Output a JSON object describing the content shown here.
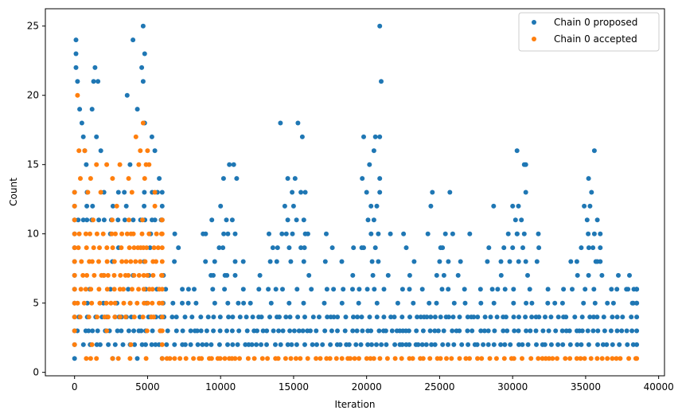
{
  "chart_data": {
    "type": "scatter",
    "title": "",
    "xlabel": "Iteration",
    "ylabel": "Count",
    "xlim": [
      -2000,
      40400
    ],
    "ylim": [
      -0.25,
      26.25
    ],
    "xticks": [
      0,
      5000,
      10000,
      15000,
      20000,
      25000,
      30000,
      35000,
      40000
    ],
    "yticks": [
      0,
      5,
      10,
      15,
      20,
      25
    ],
    "grid": false,
    "legend_position": "top-right",
    "series": [
      {
        "name": "Chain 0 proposed",
        "color": "#1f77b4",
        "bands": [
          {
            "y": 1,
            "x": [
              0,
              6000
            ],
            "density": "sparse"
          },
          {
            "y": 2,
            "x": [
              0,
              38500
            ],
            "density": "dense"
          },
          {
            "y": 3,
            "x": [
              0,
              38500
            ],
            "density": "dense"
          },
          {
            "y": 4,
            "x": [
              0,
              38500
            ],
            "density": "dense"
          },
          {
            "y": 5,
            "x": [
              0,
              38500
            ],
            "density": "medium"
          },
          {
            "y": 6,
            "x": [
              0,
              38500
            ],
            "density": "medium"
          },
          {
            "y": 7,
            "x": [
              0,
              38000
            ],
            "density": "sparse"
          },
          {
            "y": 8,
            "x": [
              0,
              36000
            ],
            "density": "sparse"
          },
          {
            "y": 9,
            "x": [
              0,
              36000
            ],
            "density": "sparse"
          },
          {
            "y": 10,
            "x": [
              0,
              36000
            ],
            "density": "sparse"
          },
          {
            "y": 11,
            "x": [
              0,
              6000
            ],
            "density": "dense"
          },
          {
            "y": 12,
            "x": [
              0,
              6000
            ],
            "density": "medium"
          },
          {
            "y": 13,
            "x": [
              0,
              6000
            ],
            "density": "medium"
          }
        ],
        "points": [
          [
            100,
            24
          ],
          [
            100,
            23
          ],
          [
            100,
            22
          ],
          [
            200,
            21
          ],
          [
            350,
            19
          ],
          [
            500,
            18
          ],
          [
            600,
            17
          ],
          [
            700,
            16
          ],
          [
            800,
            15
          ],
          [
            1400,
            22
          ],
          [
            1300,
            21
          ],
          [
            1600,
            21
          ],
          [
            1200,
            19
          ],
          [
            1500,
            17
          ],
          [
            1800,
            16
          ],
          [
            4000,
            24
          ],
          [
            4700,
            25
          ],
          [
            4800,
            23
          ],
          [
            4600,
            22
          ],
          [
            4700,
            21
          ],
          [
            3600,
            20
          ],
          [
            4300,
            19
          ],
          [
            4800,
            18
          ],
          [
            5300,
            17
          ],
          [
            5500,
            16
          ],
          [
            3800,
            15
          ],
          [
            5800,
            14
          ],
          [
            8800,
            10
          ],
          [
            9400,
            11
          ],
          [
            10000,
            12
          ],
          [
            10200,
            14
          ],
          [
            10600,
            15
          ],
          [
            10900,
            15
          ],
          [
            11100,
            14
          ],
          [
            10400,
            11
          ],
          [
            10800,
            11
          ],
          [
            10500,
            10
          ],
          [
            11000,
            10
          ],
          [
            9900,
            9
          ],
          [
            11000,
            8
          ],
          [
            9600,
            8
          ],
          [
            10300,
            7
          ],
          [
            9500,
            7
          ],
          [
            11000,
            7
          ],
          [
            14100,
            18
          ],
          [
            15300,
            18
          ],
          [
            15600,
            17
          ],
          [
            14600,
            14
          ],
          [
            15100,
            14
          ],
          [
            14900,
            13
          ],
          [
            15500,
            13
          ],
          [
            15800,
            13
          ],
          [
            14400,
            12
          ],
          [
            15000,
            12
          ],
          [
            15200,
            11
          ],
          [
            14600,
            11
          ],
          [
            15700,
            11
          ],
          [
            14500,
            10
          ],
          [
            14200,
            10
          ],
          [
            15800,
            10
          ],
          [
            13900,
            9
          ],
          [
            14700,
            9
          ],
          [
            15500,
            9
          ],
          [
            13400,
            8
          ],
          [
            15700,
            8
          ],
          [
            19800,
            17
          ],
          [
            20600,
            17
          ],
          [
            20900,
            17
          ],
          [
            20500,
            16
          ],
          [
            20200,
            15
          ],
          [
            19700,
            14
          ],
          [
            20900,
            14
          ],
          [
            20900,
            25
          ],
          [
            21000,
            21
          ],
          [
            20000,
            13
          ],
          [
            20300,
            12
          ],
          [
            20700,
            12
          ],
          [
            20900,
            13
          ],
          [
            20100,
            11
          ],
          [
            20500,
            11
          ],
          [
            20800,
            10
          ],
          [
            19100,
            9
          ],
          [
            19800,
            9
          ],
          [
            20600,
            9
          ],
          [
            18300,
            8
          ],
          [
            20800,
            8
          ],
          [
            24500,
            13
          ],
          [
            25700,
            13
          ],
          [
            24400,
            12
          ],
          [
            24200,
            10
          ],
          [
            25900,
            10
          ],
          [
            25200,
            9
          ],
          [
            25000,
            8
          ],
          [
            25600,
            8
          ],
          [
            24800,
            7
          ],
          [
            25300,
            7
          ],
          [
            30300,
            16
          ],
          [
            30800,
            15
          ],
          [
            30900,
            15
          ],
          [
            28700,
            12
          ],
          [
            30000,
            12
          ],
          [
            30400,
            12
          ],
          [
            30900,
            13
          ],
          [
            30200,
            11
          ],
          [
            30600,
            11
          ],
          [
            29700,
            10
          ],
          [
            30300,
            10
          ],
          [
            30800,
            10
          ],
          [
            29400,
            9
          ],
          [
            30000,
            9
          ],
          [
            30700,
            9
          ],
          [
            29200,
            8
          ],
          [
            29800,
            8
          ],
          [
            30900,
            8
          ],
          [
            35600,
            16
          ],
          [
            35200,
            14
          ],
          [
            35400,
            13
          ],
          [
            34900,
            12
          ],
          [
            35300,
            12
          ],
          [
            35100,
            11
          ],
          [
            35800,
            11
          ],
          [
            35600,
            10
          ],
          [
            34700,
            9
          ],
          [
            35500,
            9
          ],
          [
            34400,
            8
          ],
          [
            35800,
            8
          ],
          [
            35200,
            7
          ],
          [
            37900,
            6
          ],
          [
            38300,
            6
          ],
          [
            38500,
            6
          ],
          [
            38200,
            5
          ],
          [
            38500,
            5
          ]
        ]
      },
      {
        "name": "Chain 0 accepted",
        "color": "#ff7f0e",
        "bands": [
          {
            "y": 1,
            "x": [
              6000,
              38500
            ],
            "density": "dense"
          },
          {
            "y": 2,
            "x": [
              0,
              6000
            ],
            "density": "sparse"
          },
          {
            "y": 3,
            "x": [
              0,
              6000
            ],
            "density": "sparse"
          },
          {
            "y": 4,
            "x": [
              0,
              6000
            ],
            "density": "dense"
          },
          {
            "y": 5,
            "x": [
              0,
              6000
            ],
            "density": "dense"
          },
          {
            "y": 6,
            "x": [
              0,
              6000
            ],
            "density": "dense"
          },
          {
            "y": 7,
            "x": [
              0,
              6000
            ],
            "density": "dense"
          },
          {
            "y": 8,
            "x": [
              0,
              6000
            ],
            "density": "dense"
          },
          {
            "y": 9,
            "x": [
              0,
              6000
            ],
            "density": "dense"
          },
          {
            "y": 10,
            "x": [
              0,
              6000
            ],
            "density": "dense"
          },
          {
            "y": 11,
            "x": [
              0,
              6000
            ],
            "density": "medium"
          },
          {
            "y": 12,
            "x": [
              0,
              5500
            ],
            "density": "sparse"
          },
          {
            "y": 13,
            "x": [
              0,
              5500
            ],
            "density": "sparse"
          }
        ],
        "points": [
          [
            200,
            20
          ],
          [
            4700,
            18
          ],
          [
            300,
            16
          ],
          [
            700,
            16
          ],
          [
            4200,
            17
          ],
          [
            4500,
            16
          ],
          [
            5000,
            16
          ],
          [
            1500,
            15
          ],
          [
            2200,
            15
          ],
          [
            3100,
            15
          ],
          [
            4400,
            15
          ],
          [
            4900,
            15
          ],
          [
            5100,
            15
          ],
          [
            400,
            14
          ],
          [
            1100,
            14
          ],
          [
            2600,
            14
          ],
          [
            3700,
            14
          ],
          [
            4800,
            14
          ],
          [
            800,
            1
          ],
          [
            1100,
            1
          ],
          [
            1500,
            1
          ],
          [
            2600,
            1
          ],
          [
            3000,
            1
          ],
          [
            3800,
            1
          ],
          [
            4900,
            1
          ]
        ]
      }
    ]
  }
}
